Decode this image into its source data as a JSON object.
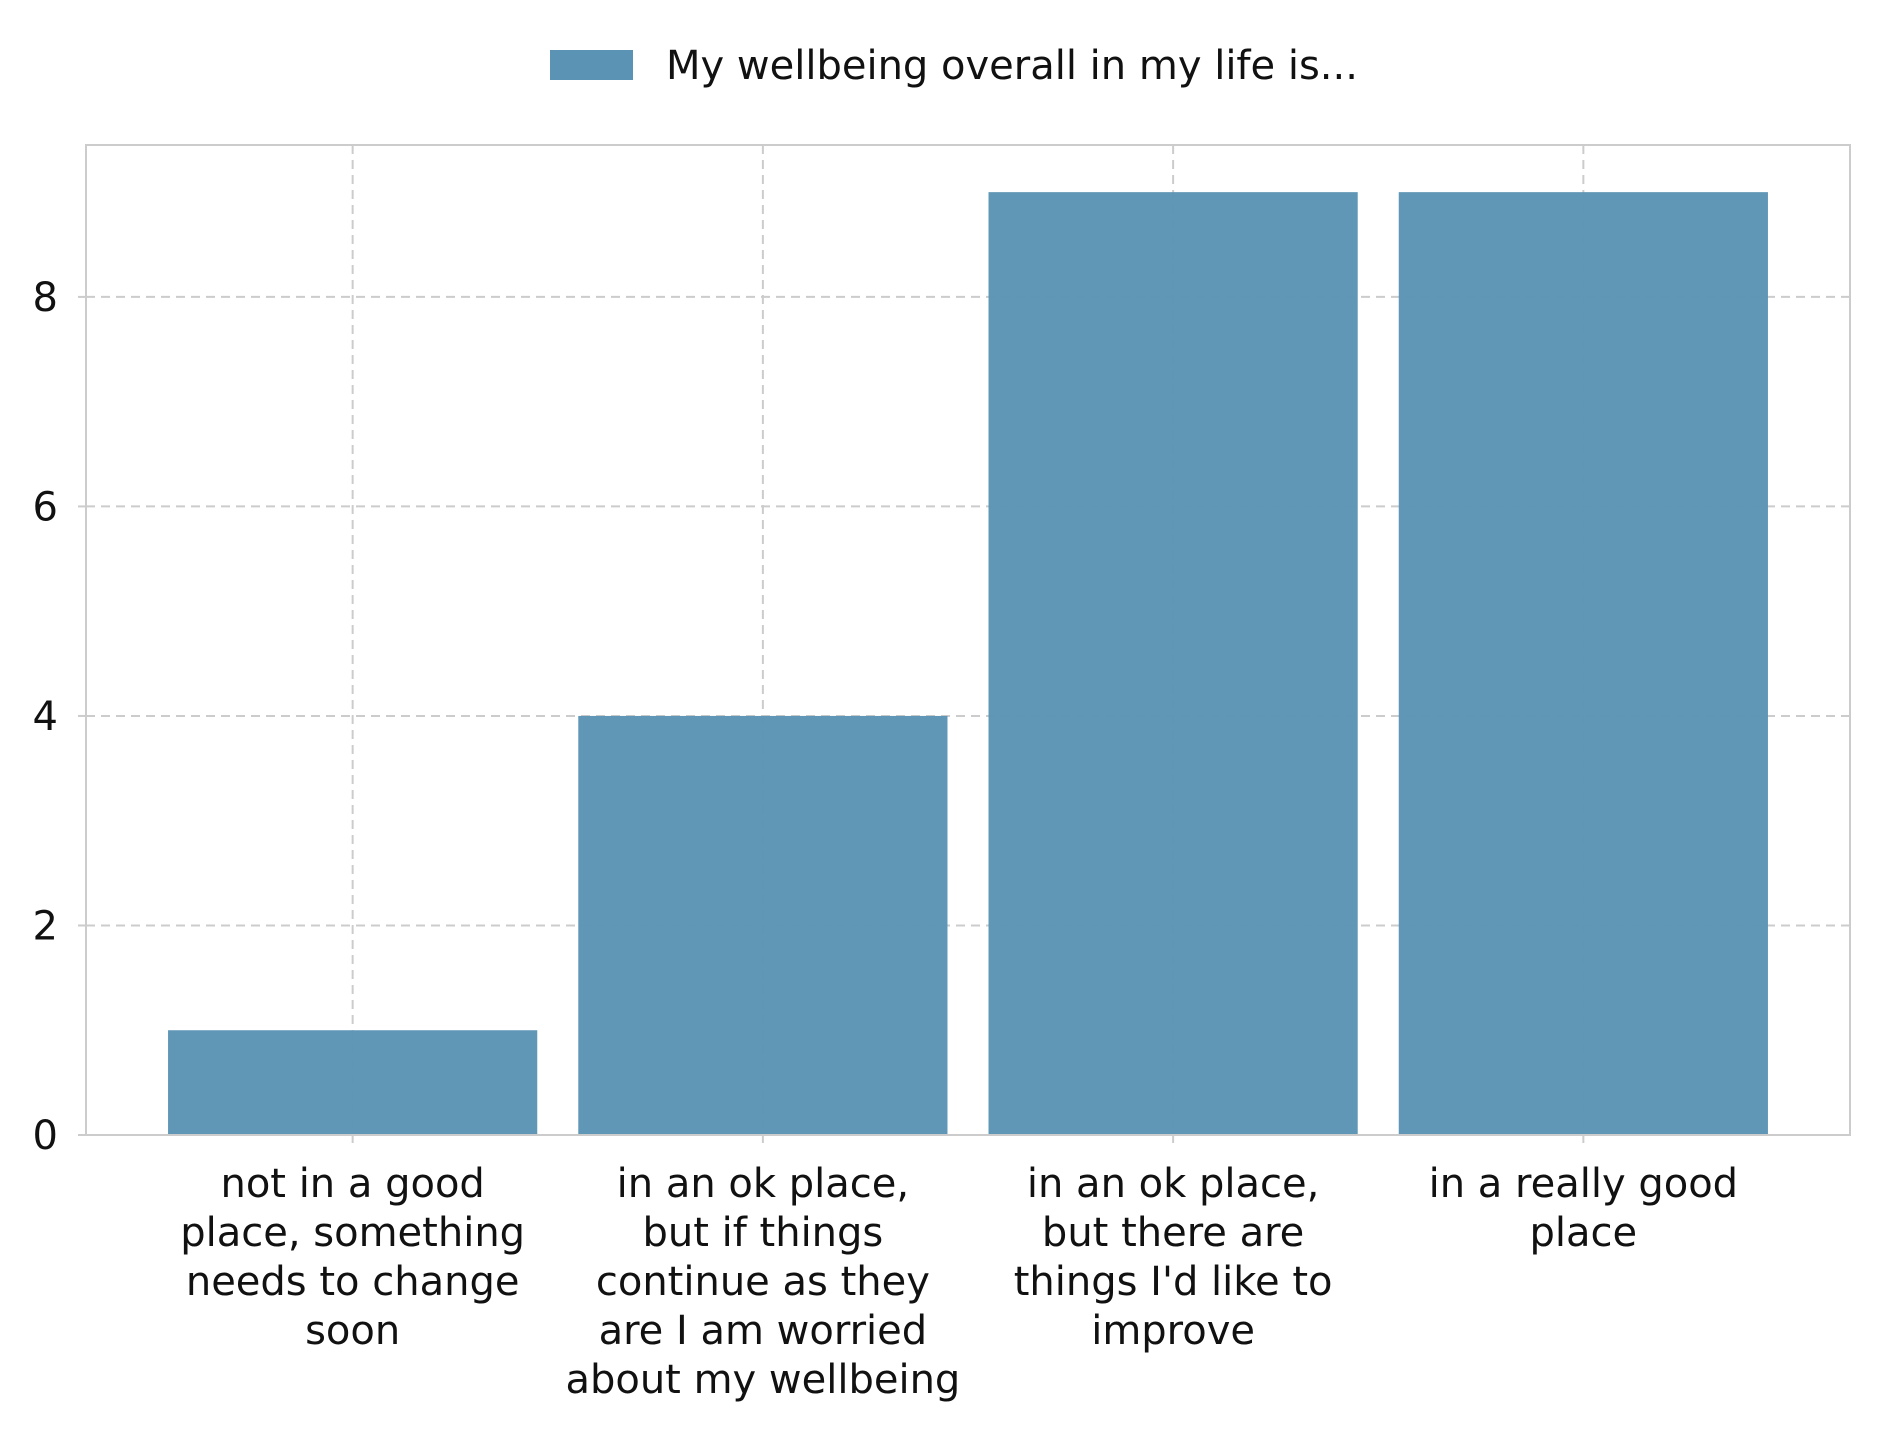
{
  "chart_data": {
    "type": "bar",
    "categories": [
      [
        "not in a good",
        "place, something",
        "needs to change",
        "soon"
      ],
      [
        "in an ok place,",
        "but if things",
        "continue as they",
        "are I am worried",
        "about my wellbeing"
      ],
      [
        "in an ok place,",
        "but there are",
        "things I'd like to",
        "improve"
      ],
      [
        "in a really good",
        "place"
      ]
    ],
    "series": [
      {
        "name": "My wellbeing overall in my life is...",
        "values": [
          1,
          4,
          9,
          9
        ]
      }
    ],
    "yticks": [
      "0",
      "2",
      "4",
      "6",
      "8"
    ],
    "ylim": [
      0,
      9.45
    ],
    "grid": true,
    "legend_position": "top-center",
    "colors": {
      "bar": "#5b93b4",
      "grid": "#cccccc",
      "frame": "#cccccc"
    }
  }
}
